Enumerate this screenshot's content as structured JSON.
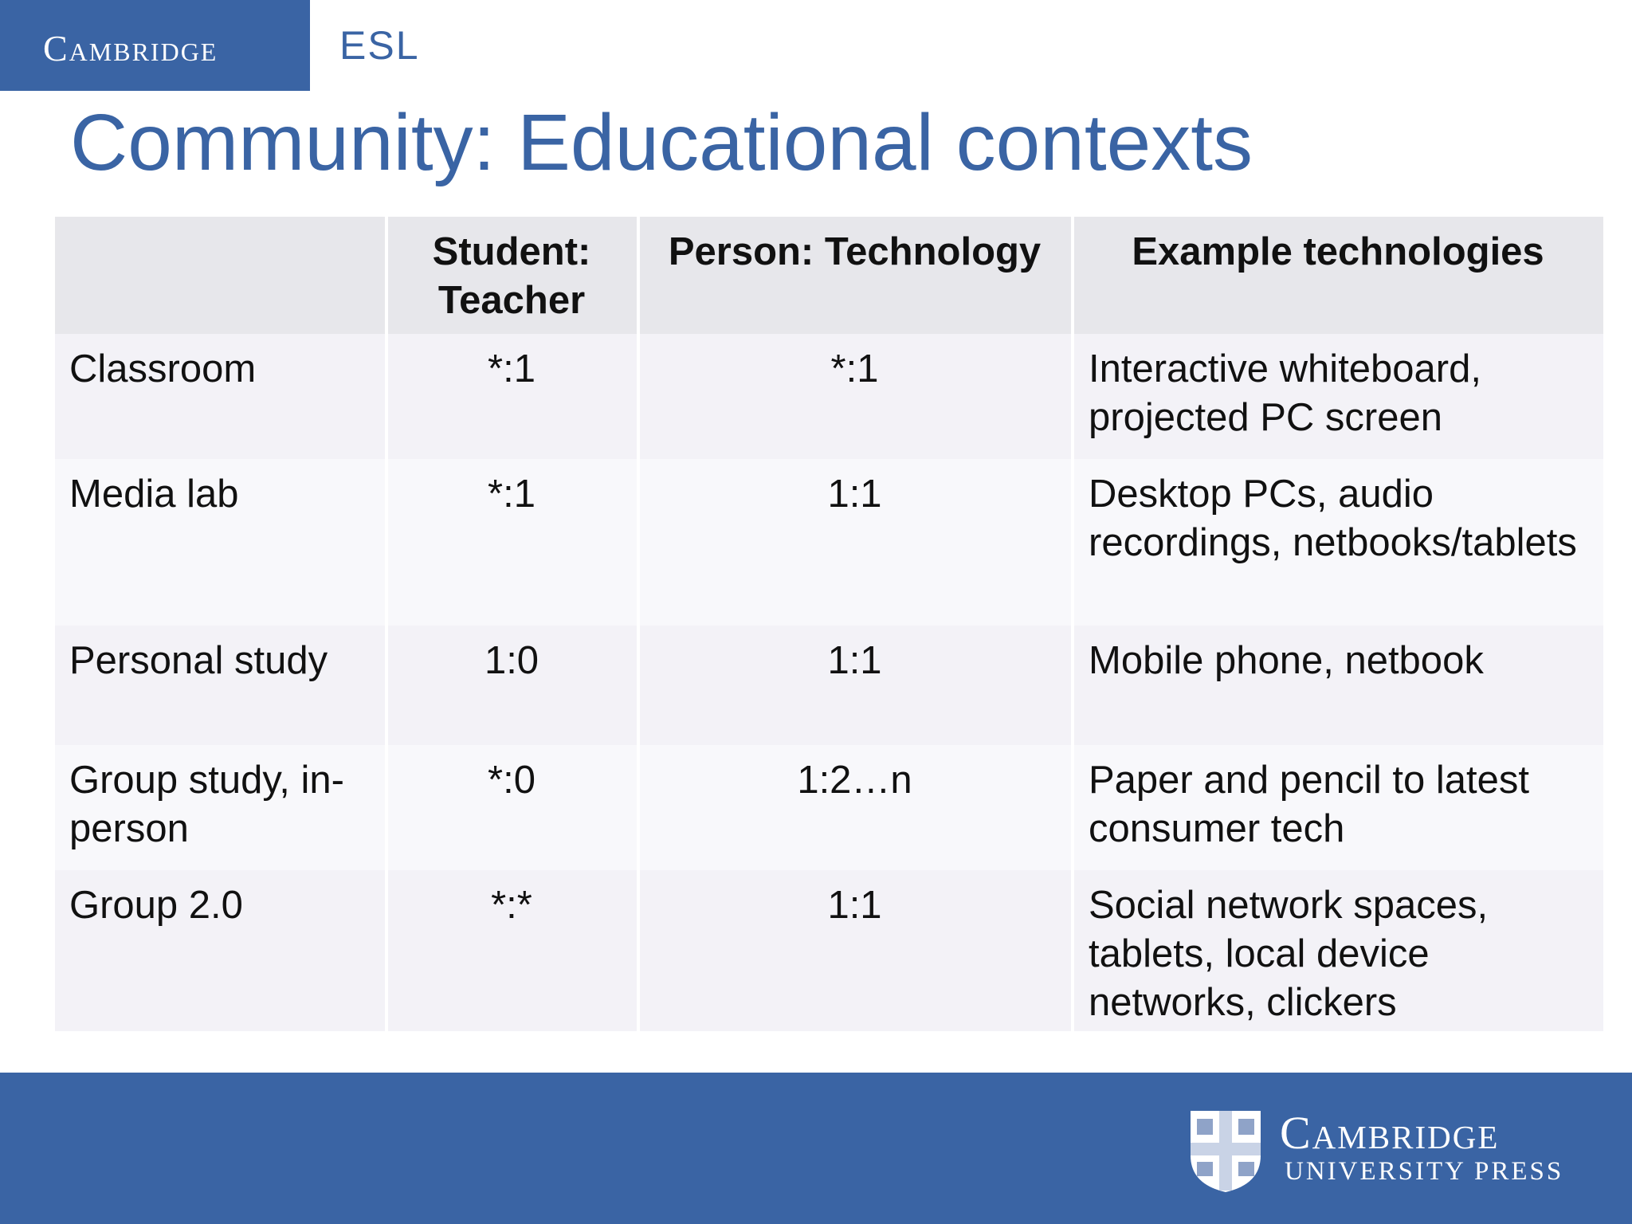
{
  "header": {
    "brand": "Cambridge",
    "product": "ESL",
    "title": "Community: Educational contexts"
  },
  "table": {
    "columns": [
      "",
      "Student: Teacher",
      "Person: Technology",
      "Example technologies"
    ],
    "rows": [
      [
        "Classroom",
        "*:1",
        "*:1",
        "Interactive whiteboard, projected PC screen"
      ],
      [
        "Media lab",
        "*:1",
        "1:1",
        "Desktop PCs, audio recordings, netbooks/tablets"
      ],
      [
        "Personal study",
        "1:0",
        "1:1",
        "Mobile phone, netbook"
      ],
      [
        "Group study, in-person",
        "*:0",
        "1:2…n",
        "Paper and pencil to latest consumer tech"
      ],
      [
        "Group 2.0",
        "*:*",
        "1:1",
        "Social network spaces, tablets, local device networks, clickers"
      ]
    ]
  },
  "footer": {
    "publisher": "Cambridge",
    "publisher_sub": "UNIVERSITY PRESS"
  }
}
